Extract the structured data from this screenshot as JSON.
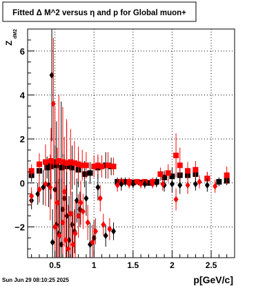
{
  "chart_data": {
    "type": "scatter",
    "title": "Fitted Δ M^2 versus η and p for Global muon+",
    "xlabel": "p[GeV/c]",
    "ylabel_main": "Z",
    "ylabel_sub": "dM2",
    "timestamp": "Sun Jun 29 08:10:25 2025",
    "xlim": [
      0.15,
      2.8
    ],
    "ylim": [
      -3.4,
      7.0
    ],
    "grid": true,
    "x_ticks": [
      "0.5",
      "1",
      "1.5",
      "2",
      "2.5"
    ],
    "y_ticks": [
      "−2",
      "0",
      "2",
      "4",
      "6"
    ],
    "x_tick_values": [
      0.5,
      1.0,
      1.5,
      2.0,
      2.5
    ],
    "y_tick_values": [
      -2,
      0,
      2,
      4,
      6
    ],
    "colors": {
      "black": "#000000",
      "red": "#ff0000"
    },
    "series": [
      {
        "color": "#000000",
        "marker": "square",
        "points": [
          [
            0.2,
            0.35,
            0.3
          ],
          [
            0.3,
            0.55,
            0.4
          ],
          [
            0.4,
            0.7,
            0.5
          ],
          [
            0.45,
            0.75,
            1.5
          ],
          [
            0.52,
            0.8,
            2.0
          ],
          [
            0.58,
            0.7,
            3.0
          ],
          [
            0.65,
            0.75,
            2.0
          ],
          [
            0.72,
            0.7,
            1.0
          ],
          [
            0.8,
            0.6,
            0.8
          ],
          [
            0.88,
            0.4,
            0.6
          ],
          [
            0.95,
            0.45,
            0.5
          ],
          [
            1.05,
            0.7,
            0.5
          ],
          [
            1.15,
            0.8,
            0.6
          ],
          [
            1.22,
            0.75,
            0.4
          ],
          [
            1.3,
            0.05,
            0.2
          ],
          [
            1.4,
            0.05,
            0.2
          ],
          [
            1.5,
            0.02,
            0.1
          ],
          [
            1.6,
            0.02,
            0.1
          ],
          [
            1.7,
            0.0,
            0.1
          ],
          [
            1.8,
            0.05,
            0.2
          ],
          [
            1.9,
            0.25,
            0.3
          ],
          [
            2.0,
            0.3,
            0.4
          ],
          [
            2.1,
            0.35,
            0.3
          ],
          [
            2.2,
            0.35,
            0.3
          ],
          [
            2.3,
            0.4,
            0.3
          ],
          [
            2.45,
            0.2,
            0.3
          ],
          [
            2.6,
            0.05,
            0.2
          ],
          [
            2.7,
            0.1,
            0.2
          ]
        ]
      },
      {
        "color": "#ff0000",
        "marker": "square",
        "points": [
          [
            0.2,
            0.55,
            0.3
          ],
          [
            0.3,
            0.85,
            0.5
          ],
          [
            0.38,
            0.95,
            0.8
          ],
          [
            0.45,
            1.0,
            1.5
          ],
          [
            0.5,
            0.95,
            2.5
          ],
          [
            0.55,
            1.0,
            3.0
          ],
          [
            0.6,
            0.95,
            2.5
          ],
          [
            0.65,
            0.9,
            2.0
          ],
          [
            0.7,
            0.95,
            1.5
          ],
          [
            0.75,
            0.9,
            1.0
          ],
          [
            0.8,
            0.85,
            0.8
          ],
          [
            0.85,
            0.8,
            0.7
          ],
          [
            0.9,
            0.8,
            0.6
          ],
          [
            1.0,
            0.75,
            0.5
          ],
          [
            1.05,
            0.8,
            0.5
          ],
          [
            1.1,
            0.75,
            0.5
          ],
          [
            1.18,
            0.8,
            0.6
          ],
          [
            1.25,
            0.75,
            0.4
          ],
          [
            1.35,
            0.05,
            0.2
          ],
          [
            1.45,
            0.05,
            0.2
          ],
          [
            1.55,
            0.05,
            0.1
          ],
          [
            1.65,
            0.05,
            0.1
          ],
          [
            1.75,
            0.05,
            0.2
          ],
          [
            1.85,
            0.4,
            0.3
          ],
          [
            1.95,
            0.45,
            0.4
          ],
          [
            2.05,
            1.25,
            1.0
          ],
          [
            2.1,
            0.8,
            0.8
          ],
          [
            2.2,
            0.55,
            0.4
          ],
          [
            2.3,
            0.6,
            0.4
          ],
          [
            2.45,
            0.2,
            0.3
          ],
          [
            2.7,
            0.35,
            0.4
          ]
        ]
      },
      {
        "color": "#000000",
        "marker": "diamond",
        "points": [
          [
            0.2,
            -0.8,
            0.4
          ],
          [
            0.28,
            -0.5,
            0.5
          ],
          [
            0.35,
            -0.2,
            0.8
          ],
          [
            0.42,
            -0.1,
            1.0
          ],
          [
            0.46,
            4.9,
            3.0
          ],
          [
            0.47,
            -2.7,
            1.5
          ],
          [
            0.5,
            -0.3,
            2.0
          ],
          [
            0.52,
            -1.9,
            2.0
          ],
          [
            0.55,
            -2.3,
            2.5
          ],
          [
            0.58,
            -2.8,
            3.0
          ],
          [
            0.6,
            -1.2,
            2.5
          ],
          [
            0.62,
            -0.7,
            2.0
          ],
          [
            0.65,
            -1.5,
            2.0
          ],
          [
            0.68,
            -2.6,
            2.0
          ],
          [
            0.72,
            -1.9,
            1.5
          ],
          [
            0.75,
            -2.2,
            1.0
          ],
          [
            0.78,
            -0.8,
            1.0
          ],
          [
            0.82,
            -1.2,
            0.8
          ],
          [
            0.9,
            -0.7,
            0.8
          ],
          [
            0.95,
            -2.8,
            1.0
          ],
          [
            1.0,
            -2.5,
            0.8
          ],
          [
            1.05,
            -0.2,
            0.6
          ],
          [
            1.15,
            -2.4,
            0.5
          ],
          [
            1.25,
            -2.2,
            0.4
          ],
          [
            1.35,
            -0.05,
            0.3
          ],
          [
            1.5,
            -0.05,
            0.2
          ],
          [
            1.65,
            -0.05,
            0.2
          ],
          [
            1.8,
            0.0,
            0.2
          ],
          [
            1.9,
            -0.1,
            0.3
          ],
          [
            2.0,
            -0.05,
            0.4
          ],
          [
            2.1,
            -0.1,
            0.4
          ],
          [
            2.3,
            -0.05,
            0.3
          ],
          [
            2.45,
            -0.1,
            0.3
          ]
        ]
      },
      {
        "color": "#ff0000",
        "marker": "diamond",
        "points": [
          [
            0.2,
            -0.6,
            0.4
          ],
          [
            0.3,
            -0.3,
            0.6
          ],
          [
            0.38,
            -0.05,
            1.0
          ],
          [
            0.44,
            -0.2,
            1.5
          ],
          [
            0.48,
            3.6,
            3.0
          ],
          [
            0.5,
            -2.0,
            2.0
          ],
          [
            0.53,
            -0.9,
            2.5
          ],
          [
            0.56,
            -2.4,
            3.0
          ],
          [
            0.6,
            -1.8,
            3.0
          ],
          [
            0.62,
            -0.4,
            2.5
          ],
          [
            0.64,
            -2.6,
            2.5
          ],
          [
            0.67,
            -3.0,
            2.0
          ],
          [
            0.7,
            -1.4,
            2.0
          ],
          [
            0.73,
            -2.8,
            1.5
          ],
          [
            0.76,
            -2.3,
            1.5
          ],
          [
            0.8,
            -1.5,
            1.0
          ],
          [
            0.83,
            -0.9,
            1.0
          ],
          [
            0.86,
            -1.3,
            0.8
          ],
          [
            0.92,
            -1.8,
            0.8
          ],
          [
            0.98,
            -2.7,
            0.8
          ],
          [
            1.02,
            -2.2,
            0.6
          ],
          [
            1.08,
            -0.7,
            0.6
          ],
          [
            1.12,
            -1.9,
            0.5
          ],
          [
            1.2,
            -2.1,
            0.5
          ],
          [
            1.3,
            -0.1,
            0.3
          ],
          [
            1.45,
            -0.05,
            0.2
          ],
          [
            1.6,
            -0.05,
            0.2
          ],
          [
            1.75,
            -0.05,
            0.2
          ],
          [
            1.88,
            -0.05,
            0.3
          ],
          [
            2.05,
            -0.75,
            0.5
          ],
          [
            2.2,
            -0.1,
            0.4
          ],
          [
            2.35,
            0.05,
            0.3
          ],
          [
            2.55,
            -0.15,
            0.3
          ]
        ]
      }
    ]
  }
}
